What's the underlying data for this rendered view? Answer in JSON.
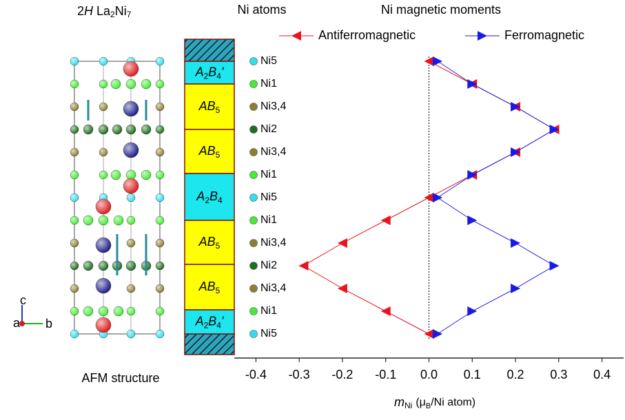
{
  "header": {
    "title": {
      "prefix": "2",
      "italic": "H",
      "la": "La",
      "la_sub": "2",
      "ni": "Ni",
      "ni_sub": "7"
    },
    "column_title": "Ni atoms",
    "structure_caption": "AFM structure",
    "axes": [
      "a",
      "b",
      "c"
    ]
  },
  "blocks": [
    [
      "A",
      "2",
      "B",
      "4",
      "'"
    ],
    [
      "AB",
      "5"
    ],
    [
      "AB",
      "5"
    ],
    [
      "A",
      "2",
      "B",
      "4"
    ],
    [
      "AB",
      "5"
    ],
    [
      "AB",
      "5"
    ],
    [
      "A",
      "2",
      "B",
      "4",
      "'"
    ]
  ],
  "chart_data": {
    "type": "line",
    "title": "Ni magnetic moments",
    "x_label": {
      "m": "m",
      "m_sub": "Ni",
      "open": "(μ",
      "mu_sub": "B",
      "close": "/Ni atom)"
    },
    "categories": [
      "Ni5",
      "Ni1",
      "Ni3,4",
      "Ni2",
      "Ni3,4",
      "Ni1",
      "Ni5",
      "Ni1",
      "Ni3,4",
      "Ni2",
      "Ni3,4",
      "Ni1",
      "Ni5"
    ],
    "category_colors": [
      "#33ddee",
      "#44ee33",
      "#8b8030",
      "#1e6e1e",
      "#8b8030",
      "#44ee33",
      "#33ddee",
      "#44ee33",
      "#8b8030",
      "#1e6e1e",
      "#8b8030",
      "#44ee33",
      "#33ddee"
    ],
    "series": [
      {
        "name": "Antiferromagnetic",
        "color": "#e8141e",
        "marker": "left-triangle",
        "values": [
          0,
          0.1,
          0.2,
          0.29,
          0.2,
          0.1,
          0,
          -0.1,
          -0.2,
          -0.29,
          -0.2,
          -0.1,
          0
        ]
      },
      {
        "name": "Ferromagnetic",
        "color": "#1a1ae8",
        "marker": "right-triangle",
        "values": [
          0.02,
          0.1,
          0.2,
          0.29,
          0.2,
          0.1,
          0.02,
          0.1,
          0.2,
          0.29,
          0.2,
          0.1,
          0.02
        ]
      }
    ],
    "xlim": [
      -0.45,
      0.45
    ],
    "xticks": [
      -0.4,
      -0.3,
      -0.2,
      -0.1,
      {
        "value": 0,
        "label": "0.0"
      },
      0.1,
      0.2,
      0.3,
      0.4
    ],
    "zero_line": true,
    "legend": "top"
  }
}
